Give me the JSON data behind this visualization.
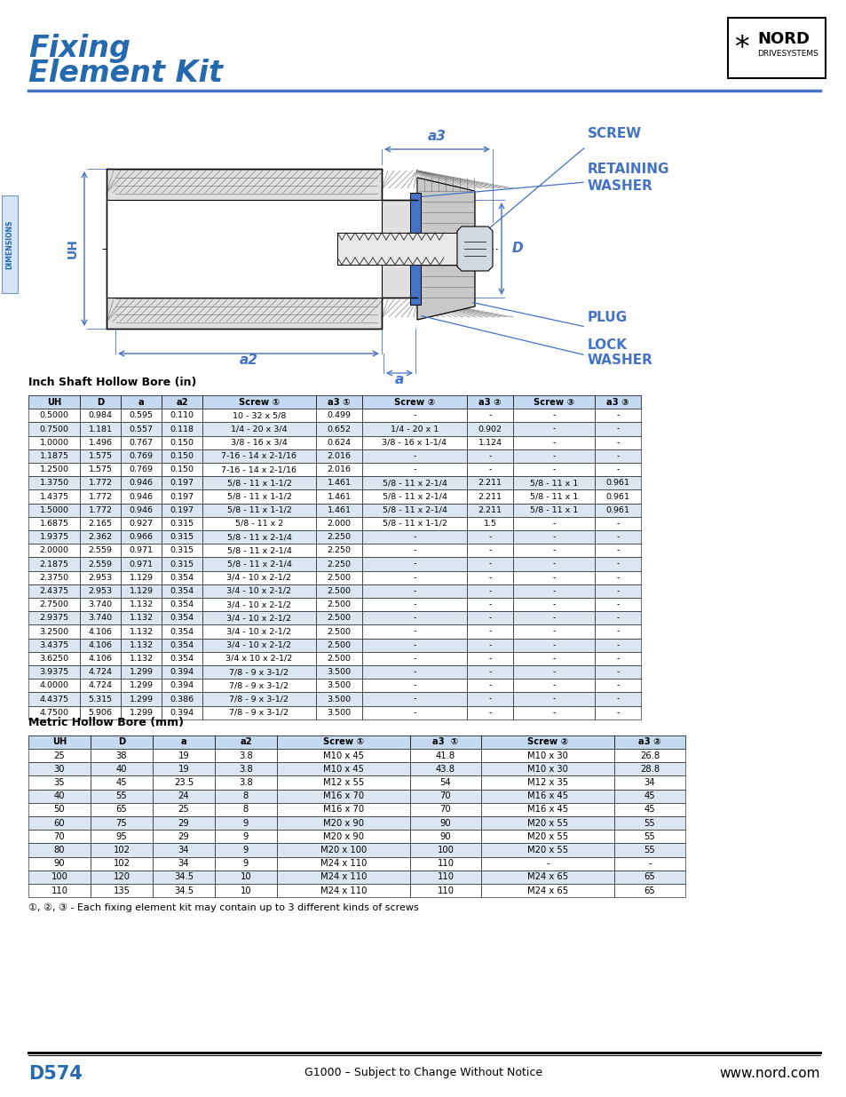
{
  "title_line1": "Fixing",
  "title_line2": "Element Kit",
  "title_color": "#2569AE",
  "page_label": "D574",
  "footer_center": "G1000 – Subject to Change Without Notice",
  "footer_right": "www.nord.com",
  "inch_section_title": "Inch Shaft Hollow Bore (in)",
  "metric_section_title": "Metric Hollow Bore (mm)",
  "footnote": "①, ②, ③ - Each fixing element kit may contain up to 3 different kinds of screws",
  "inch_headers": [
    "UH",
    "D",
    "a",
    "a2",
    "Screw ①",
    "a3 ①",
    "Screw ②",
    "a3 ②",
    "Screw ③",
    "a3 ③"
  ],
  "inch_col_widths": [
    58,
    46,
    46,
    46,
    128,
    52,
    118,
    52,
    92,
    52
  ],
  "inch_data": [
    [
      "0.5000",
      "0.984",
      "0.595",
      "0.110",
      "10 - 32 x 5/8",
      "0.499",
      "-",
      "-",
      "-",
      "-"
    ],
    [
      "0.7500",
      "1.181",
      "0.557",
      "0.118",
      "1/4 - 20 x 3/4",
      "0.652",
      "1/4 - 20 x 1",
      "0.902",
      "-",
      "-"
    ],
    [
      "1.0000",
      "1.496",
      "0.767",
      "0.150",
      "3/8 - 16 x 3/4",
      "0.624",
      "3/8 - 16 x 1-1/4",
      "1.124",
      "-",
      "-"
    ],
    [
      "1.1875",
      "1.575",
      "0.769",
      "0.150",
      "7-16 - 14 x 2-1/16",
      "2.016",
      "-",
      "-",
      "-",
      "-"
    ],
    [
      "1.2500",
      "1.575",
      "0.769",
      "0.150",
      "7-16 - 14 x 2-1/16",
      "2.016",
      "-",
      "-",
      "-",
      "-"
    ],
    [
      "1.3750",
      "1.772",
      "0.946",
      "0.197",
      "5/8 - 11 x 1-1/2",
      "1.461",
      "5/8 - 11 x 2-1/4",
      "2.211",
      "5/8 - 11 x 1",
      "0.961"
    ],
    [
      "1.4375",
      "1.772",
      "0.946",
      "0.197",
      "5/8 - 11 x 1-1/2",
      "1.461",
      "5/8 - 11 x 2-1/4",
      "2.211",
      "5/8 - 11 x 1",
      "0.961"
    ],
    [
      "1.5000",
      "1.772",
      "0.946",
      "0.197",
      "5/8 - 11 x 1-1/2",
      "1.461",
      "5/8 - 11 x 2-1/4",
      "2.211",
      "5/8 - 11 x 1",
      "0.961"
    ],
    [
      "1.6875",
      "2.165",
      "0.927",
      "0.315",
      "5/8 - 11 x 2",
      "2.000",
      "5/8 - 11 x 1-1/2",
      "1.5",
      "-",
      "-"
    ],
    [
      "1.9375",
      "2.362",
      "0.966",
      "0.315",
      "5/8 - 11 x 2-1/4",
      "2.250",
      "-",
      "-",
      "-",
      "-"
    ],
    [
      "2.0000",
      "2.559",
      "0.971",
      "0.315",
      "5/8 - 11 x 2-1/4",
      "2.250",
      "-",
      "-",
      "-",
      "-"
    ],
    [
      "2.1875",
      "2.559",
      "0.971",
      "0.315",
      "5/8 - 11 x 2-1/4",
      "2.250",
      "-",
      "-",
      "-",
      "-"
    ],
    [
      "2.3750",
      "2.953",
      "1.129",
      "0.354",
      "3/4 - 10 x 2-1/2",
      "2.500",
      "-",
      "-",
      "-",
      "-"
    ],
    [
      "2.4375",
      "2.953",
      "1.129",
      "0.354",
      "3/4 - 10 x 2-1/2",
      "2.500",
      "-",
      "-",
      "-",
      "-"
    ],
    [
      "2.7500",
      "3.740",
      "1.132",
      "0.354",
      "3/4 - 10 x 2-1/2",
      "2.500",
      "-",
      "-",
      "-",
      "-"
    ],
    [
      "2.9375",
      "3.740",
      "1.132",
      "0.354",
      "3/4 - 10 x 2-1/2",
      "2.500",
      "-",
      "-",
      "-",
      "-"
    ],
    [
      "3.2500",
      "4.106",
      "1.132",
      "0.354",
      "3/4 - 10 x 2-1/2",
      "2.500",
      "-",
      "-",
      "-",
      "-"
    ],
    [
      "3.4375",
      "4.106",
      "1.132",
      "0.354",
      "3/4 - 10 x 2-1/2",
      "2.500",
      "-",
      "-",
      "-",
      "-"
    ],
    [
      "3.6250",
      "4.106",
      "1.132",
      "0.354",
      "3/4 x 10 x 2-1/2",
      "2.500",
      "-",
      "-",
      "-",
      "-"
    ],
    [
      "3.9375",
      "4.724",
      "1.299",
      "0.394",
      "7/8 - 9 x 3-1/2",
      "3.500",
      "-",
      "-",
      "-",
      "-"
    ],
    [
      "4.0000",
      "4.724",
      "1.299",
      "0.394",
      "7/8 - 9 x 3-1/2",
      "3.500",
      "-",
      "-",
      "-",
      "-"
    ],
    [
      "4.4375",
      "5.315",
      "1.299",
      "0.386",
      "7/8 - 9 x 3-1/2",
      "3.500",
      "-",
      "-",
      "-",
      "-"
    ],
    [
      "4.7500",
      "5.906",
      "1.299",
      "0.394",
      "7/8 - 9 x 3-1/2",
      "3.500",
      "-",
      "-",
      "-",
      "-"
    ]
  ],
  "metric_headers": [
    "UH",
    "D",
    "a",
    "a2",
    "Screw ①",
    "a3  ①",
    "Screw ②",
    "a3 ②"
  ],
  "metric_col_widths": [
    70,
    70,
    70,
    70,
    150,
    80,
    150,
    80
  ],
  "metric_data": [
    [
      "25",
      "38",
      "19",
      "3.8",
      "M10 x 45",
      "41.8",
      "M10 x 30",
      "26.8"
    ],
    [
      "30",
      "40",
      "19",
      "3.8",
      "M10 x 45",
      "43.8",
      "M10 x 30",
      "28.8"
    ],
    [
      "35",
      "45",
      "23.5",
      "3.8",
      "M12 x 55",
      "54",
      "M12 x 35",
      "34"
    ],
    [
      "40",
      "55",
      "24",
      "8",
      "M16 x 70",
      "70",
      "M16 x 45",
      "45"
    ],
    [
      "50",
      "65",
      "25",
      "8",
      "M16 x 70",
      "70",
      "M16 x 45",
      "45"
    ],
    [
      "60",
      "75",
      "29",
      "9",
      "M20 x 90",
      "90",
      "M20 x 55",
      "55"
    ],
    [
      "70",
      "95",
      "29",
      "9",
      "M20 x 90",
      "90",
      "M20 x 55",
      "55"
    ],
    [
      "80",
      "102",
      "34",
      "9",
      "M20 x 100",
      "100",
      "M20 x 55",
      "55"
    ],
    [
      "90",
      "102",
      "34",
      "9",
      "M24 x 110",
      "110",
      "-",
      "-"
    ],
    [
      "100",
      "120",
      "34.5",
      "10",
      "M24 x 110",
      "110",
      "M24 x 65",
      "65"
    ],
    [
      "110",
      "135",
      "34.5",
      "10",
      "M24 x 110",
      "110",
      "M24 x 65",
      "65"
    ]
  ],
  "header_bg": "#C5D9F1",
  "row_alt_bg": "#DCE6F1",
  "blue_text": "#2569AE",
  "diagram_blue": "#4472C4",
  "hatch_color": "#808080"
}
